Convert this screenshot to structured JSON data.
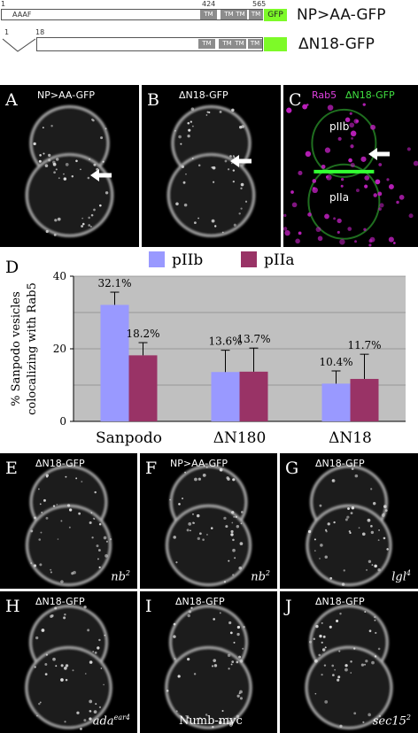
{
  "constructs": [
    {
      "name": "NP>AA-GFP",
      "start_label": "1",
      "tm1_label": "424",
      "end_label": "565",
      "motif": "AAAF",
      "tm_labels": [
        "TM",
        "TM",
        "TM",
        "TM"
      ],
      "gfp_label": "GFP"
    },
    {
      "name": "ΔN18-GFP",
      "start_label": "1",
      "deletion_end_label": "18",
      "tm_labels": [
        "TM",
        "TM",
        "TM",
        "TM"
      ]
    }
  ],
  "panels_top": [
    {
      "letter": "A",
      "title": "NP>AA-GFP"
    },
    {
      "letter": "B",
      "title": "ΔN18-GFP"
    },
    {
      "letter": "C",
      "title_magenta": "Rab5",
      "title_green": "ΔN18-GFP",
      "cell_top": "pIIb",
      "cell_bottom": "pIIa"
    }
  ],
  "chart_panel_letter": "D",
  "chart_data": {
    "type": "bar",
    "categories": [
      "Sanpodo",
      "ΔN180",
      "ΔN18"
    ],
    "series": [
      {
        "name": "pIIb",
        "values": [
          32.1,
          13.6,
          10.4
        ],
        "errors": [
          3.5,
          6.0,
          3.5
        ],
        "color": "#9999ff"
      },
      {
        "name": "pIIa",
        "values": [
          18.2,
          13.7,
          11.7
        ],
        "errors": [
          3.5,
          6.5,
          6.8
        ],
        "color": "#993366"
      }
    ],
    "data_labels": [
      [
        "32.1%",
        "13.6%",
        "10.4%"
      ],
      [
        "18.2%",
        "13.7%",
        "11.7%"
      ]
    ],
    "ylabel_line1": "% Sanpodo vesicles",
    "ylabel_line2": "colocalizing with Rab5",
    "ylim": [
      0,
      40
    ],
    "yticks": [
      "0",
      "20",
      "40"
    ],
    "grid": true,
    "plot_background": "#c0c0c0",
    "legend": "top"
  },
  "panels_mid": [
    {
      "letter": "E",
      "title": "ΔN18-GFP",
      "genotype": "nb",
      "genotype_sup": "2"
    },
    {
      "letter": "F",
      "title": "NP>AA-GFP",
      "genotype": "nb",
      "genotype_sup": "2"
    },
    {
      "letter": "G",
      "title": "ΔN18-GFP",
      "genotype": "lgl",
      "genotype_sup": "4"
    }
  ],
  "panels_bot": [
    {
      "letter": "H",
      "title": "ΔN18-GFP",
      "genotype": "ada",
      "genotype_sup": "ear4"
    },
    {
      "letter": "I",
      "title": "ΔN18-GFP",
      "label": "Numb-myc"
    },
    {
      "letter": "J",
      "title": "ΔN18-GFP",
      "genotype": "sec15",
      "genotype_sup": "2"
    }
  ]
}
